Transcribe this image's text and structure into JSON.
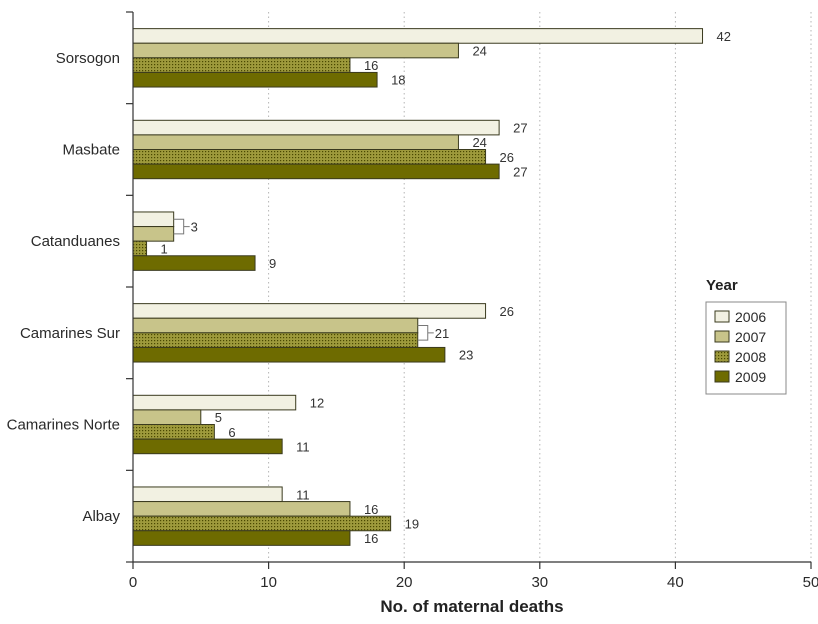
{
  "chart_data": {
    "type": "bar",
    "orientation": "horizontal",
    "categories": [
      "Sorsogon",
      "Masbate",
      "Catanduanes",
      "Camarines Sur",
      "Camarines Norte",
      "Albay"
    ],
    "series": [
      {
        "name": "2006",
        "color": "#f2f1e2",
        "pattern": "solid",
        "values": [
          42,
          27,
          3,
          26,
          12,
          11
        ]
      },
      {
        "name": "2007",
        "color": "#c8c48a",
        "pattern": "solid",
        "values": [
          24,
          24,
          3,
          21,
          5,
          16
        ]
      },
      {
        "name": "2008",
        "color": "#9e9a3c",
        "pattern": "dotted",
        "values": [
          16,
          26,
          1,
          21,
          6,
          19
        ]
      },
      {
        "name": "2009",
        "color": "#6e6b00",
        "pattern": "solid",
        "values": [
          18,
          27,
          9,
          23,
          11,
          16
        ]
      }
    ],
    "xlabel": "No. of maternal deaths",
    "xlim": [
      0,
      50
    ],
    "xticks": [
      0,
      10,
      20,
      30,
      40,
      50
    ],
    "grid": "vertical dotted",
    "legend": {
      "title": "Year",
      "placement": "right"
    }
  }
}
